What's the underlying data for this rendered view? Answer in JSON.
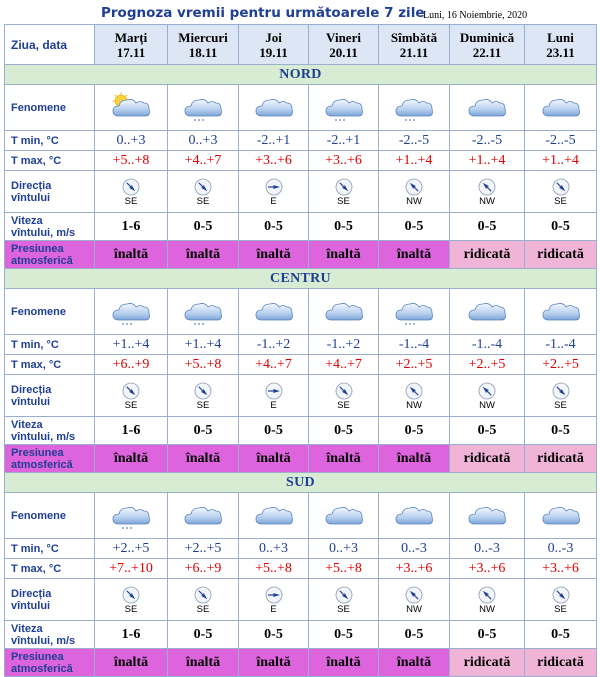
{
  "title": "Prognoza vremii pentru următoarele 7 zile",
  "issue_date": "Luni, 16 Noiembrie, 2020",
  "header_label": "Ziua, data",
  "days": [
    {
      "name": "Marți",
      "date": "17.11"
    },
    {
      "name": "Miercuri",
      "date": "18.11"
    },
    {
      "name": "Joi",
      "date": "19.11"
    },
    {
      "name": "Vineri",
      "date": "20.11"
    },
    {
      "name": "Sîmbătă",
      "date": "21.11"
    },
    {
      "name": "Duminică",
      "date": "22.11"
    },
    {
      "name": "Luni",
      "date": "23.11"
    }
  ],
  "row_labels": {
    "fenomene": "Fenomene",
    "tmin": "T min, °C",
    "tmax": "T max, °C",
    "dir_line1": "Direcția",
    "dir_line2": "vîntului",
    "wind_line1": "Viteza",
    "wind_line2": "vîntului, m/s",
    "pres_line1": "Presiunea",
    "pres_line2": "atmosferică"
  },
  "colors": {
    "high_pressure": "#dd64dd",
    "raised_pressure": "#f0b4d6",
    "region_band": "#d7ecd2",
    "tmin": "#1f3f94",
    "tmax": "#e00000"
  },
  "regions": [
    {
      "name": "NORD",
      "icons": [
        "sun-cloud-icon",
        "cloud-snow-icon",
        "cloud-icon",
        "cloud-snow-icon",
        "cloud-snow-icon",
        "cloud-icon",
        "cloud-icon"
      ],
      "tmin": [
        "0..+3",
        "0..+3",
        "-2..+1",
        "-2..+1",
        "-2..-5",
        "-2..-5",
        "-2..-5"
      ],
      "tmax": [
        "+5..+8",
        "+4..+7",
        "+3..+6",
        "+3..+6",
        "+1..+4",
        "+1..+4",
        "+1..+4"
      ],
      "wind_dir": [
        "SE",
        "SE",
        "E",
        "SE",
        "NW",
        "NW",
        "SE"
      ],
      "wind_speed": [
        "1-6",
        "0-5",
        "0-5",
        "0-5",
        "0-5",
        "0-5",
        "0-5"
      ],
      "pressure": [
        "înaltă",
        "înaltă",
        "înaltă",
        "înaltă",
        "înaltă",
        "ridicată",
        "ridicată"
      ]
    },
    {
      "name": "CENTRU",
      "icons": [
        "cloud-snow-icon",
        "cloud-snow-icon",
        "cloud-icon",
        "cloud-icon",
        "cloud-snow-icon",
        "cloud-icon",
        "cloud-icon"
      ],
      "tmin": [
        "+1..+4",
        "+1..+4",
        "-1..+2",
        "-1..+2",
        "-1..-4",
        "-1..-4",
        "-1..-4"
      ],
      "tmax": [
        "+6..+9",
        "+5..+8",
        "+4..+7",
        "+4..+7",
        "+2..+5",
        "+2..+5",
        "+2..+5"
      ],
      "wind_dir": [
        "SE",
        "SE",
        "E",
        "SE",
        "NW",
        "NW",
        "SE"
      ],
      "wind_speed": [
        "1-6",
        "0-5",
        "0-5",
        "0-5",
        "0-5",
        "0-5",
        "0-5"
      ],
      "pressure": [
        "înaltă",
        "înaltă",
        "înaltă",
        "înaltă",
        "înaltă",
        "ridicată",
        "ridicată"
      ]
    },
    {
      "name": "SUD",
      "icons": [
        "cloud-snow-icon",
        "cloud-icon",
        "cloud-icon",
        "cloud-icon",
        "cloud-icon",
        "cloud-icon",
        "cloud-icon"
      ],
      "tmin": [
        "+2..+5",
        "+2..+5",
        "0..+3",
        "0..+3",
        "0..-3",
        "0..-3",
        "0..-3"
      ],
      "tmax": [
        "+7..+10",
        "+6..+9",
        "+5..+8",
        "+5..+8",
        "+3..+6",
        "+3..+6",
        "+3..+6"
      ],
      "wind_dir": [
        "SE",
        "SE",
        "E",
        "SE",
        "NW",
        "NW",
        "SE"
      ],
      "wind_speed": [
        "1-6",
        "0-5",
        "0-5",
        "0-5",
        "0-5",
        "0-5",
        "0-5"
      ],
      "pressure": [
        "înaltă",
        "înaltă",
        "înaltă",
        "înaltă",
        "înaltă",
        "ridicată",
        "ridicată"
      ]
    }
  ]
}
